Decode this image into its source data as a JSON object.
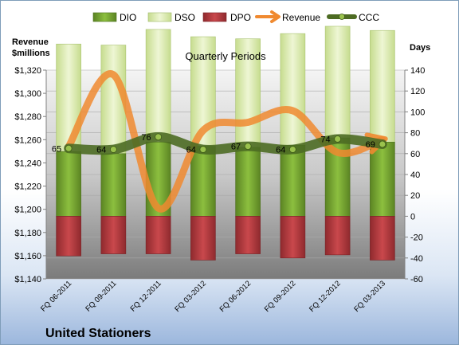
{
  "chart_data": {
    "type": "bar",
    "title": "Quarterly Periods",
    "company": "United Stationers",
    "left_axis_label_line1": "Revenue",
    "left_axis_label_line2": "$millions",
    "right_axis_label": "Days",
    "left_ylim": [
      1140,
      1320
    ],
    "left_ticks": [
      "$1,140",
      "$1,160",
      "$1,180",
      "$1,200",
      "$1,220",
      "$1,240",
      "$1,260",
      "$1,280",
      "$1,300",
      "$1,320"
    ],
    "right_ylim": [
      -60,
      140
    ],
    "right_ticks": [
      "-60",
      "-40",
      "-20",
      "0",
      "20",
      "40",
      "60",
      "80",
      "100",
      "120",
      "140"
    ],
    "categories": [
      "FQ 06-2011",
      "FQ 09-2011",
      "FQ 12-2011",
      "FQ 03-2012",
      "FQ 06-2012",
      "FQ 09-2012",
      "FQ 12-2012",
      "FQ 03-2013"
    ],
    "legend": [
      "DIO",
      "DSO",
      "DPO",
      "Revenue",
      "CCC"
    ],
    "series": {
      "DIO": [
        62,
        60,
        71,
        67,
        66,
        68,
        75,
        71
      ],
      "DSO": [
        103,
        104,
        108,
        105,
        104,
        107,
        107,
        107
      ],
      "DPO": [
        -38,
        -36,
        -36,
        -42,
        -36,
        -40,
        -37,
        -42
      ],
      "Revenue": [
        1254,
        1316,
        1201,
        1268,
        1275,
        1285,
        1249,
        1260
      ],
      "CCC": [
        65,
        64,
        76,
        64,
        67,
        64,
        74,
        69
      ]
    },
    "ccc_labels": [
      "65",
      "64",
      "76",
      "64",
      "67",
      "64",
      "74",
      "69"
    ],
    "colors": {
      "DIO": "#6e9a2c",
      "DSO": "#d6e7a9",
      "DPO": "#b03a3e",
      "Revenue": "#f08a30",
      "CCC": "#4d6b23",
      "plot_top": "#f4f4f4",
      "plot_bottom": "#7b7b7b"
    }
  }
}
